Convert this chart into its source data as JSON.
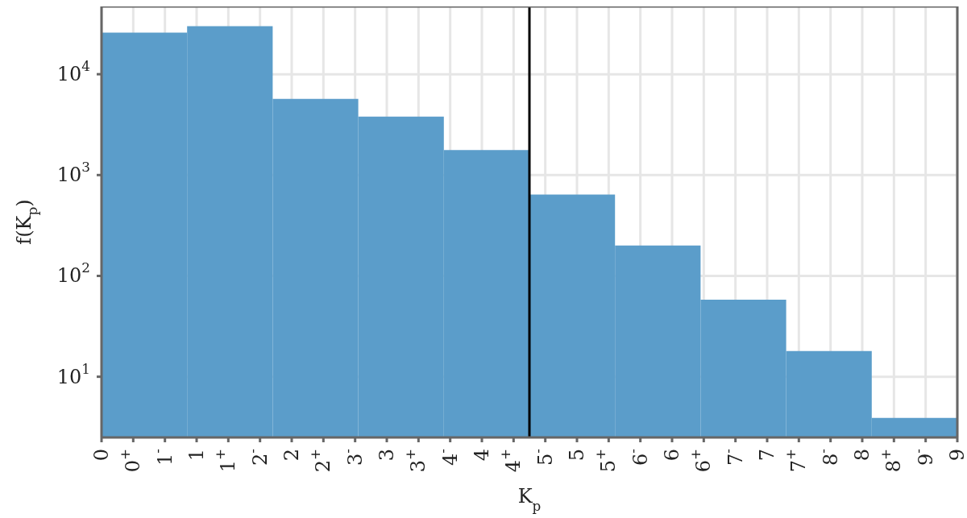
{
  "chart_data": {
    "type": "histogram",
    "xlabel": "K$_{p}$",
    "ylabel": "f(K$_{p}$)",
    "bins": [
      0,
      0.9,
      1.8,
      2.7,
      3.6,
      4.5,
      5.4,
      6.3,
      7.2,
      8.1,
      9
    ],
    "values": [
      25900,
      30000,
      5700,
      3800,
      1770,
      640,
      200,
      58,
      18,
      3.9
    ],
    "color": "#5b9dca",
    "log": "y",
    "grid": true,
    "xlim": [
      0,
      9
    ],
    "xticks": [
      {
        "value": 0,
        "label": "0"
      },
      {
        "value": 0.3333,
        "label": "0$^{+}$"
      },
      {
        "value": 0.6667,
        "label": "1$^{-}$"
      },
      {
        "value": 1,
        "label": "1"
      },
      {
        "value": 1.3333,
        "label": "1$^{+}$"
      },
      {
        "value": 1.6667,
        "label": "2$^{-}$"
      },
      {
        "value": 2,
        "label": "2"
      },
      {
        "value": 2.3333,
        "label": "2$^{+}$"
      },
      {
        "value": 2.6667,
        "label": "3$^{-}$"
      },
      {
        "value": 3,
        "label": "3"
      },
      {
        "value": 3.3333,
        "label": "3$^{+}$"
      },
      {
        "value": 3.6667,
        "label": "4$^{-}$"
      },
      {
        "value": 4,
        "label": "4"
      },
      {
        "value": 4.3333,
        "label": "4$^{+}$"
      },
      {
        "value": 4.6667,
        "label": "5$^{-}$"
      },
      {
        "value": 5,
        "label": "5"
      },
      {
        "value": 5.3333,
        "label": "5$^{+}$"
      },
      {
        "value": 5.6667,
        "label": "6$^{-}$"
      },
      {
        "value": 6,
        "label": "6"
      },
      {
        "value": 6.3333,
        "label": "6$^{+}$"
      },
      {
        "value": 6.6667,
        "label": "7$^{-}$"
      },
      {
        "value": 7,
        "label": "7"
      },
      {
        "value": 7.3333,
        "label": "7$^{+}$"
      },
      {
        "value": 7.6667,
        "label": "8$^{-}$"
      },
      {
        "value": 8,
        "label": "8"
      },
      {
        "value": 8.3333,
        "label": "8$^{+}$"
      },
      {
        "value": 8.6667,
        "label": "9$^{-}$"
      },
      {
        "value": 9,
        "label": "9"
      }
    ],
    "ylim": [
      2.5,
      47000
    ],
    "yticks": [
      {
        "value": 10,
        "label": "10$^{1}$"
      },
      {
        "value": 100,
        "label": "10$^{2}$"
      },
      {
        "value": 1000,
        "label": "10$^{3}$"
      },
      {
        "value": 10000,
        "label": "10$^{4}$"
      }
    ],
    "ref_lines": [
      {
        "axis": "x",
        "value": 4.5,
        "color": "#000000"
      }
    ]
  }
}
